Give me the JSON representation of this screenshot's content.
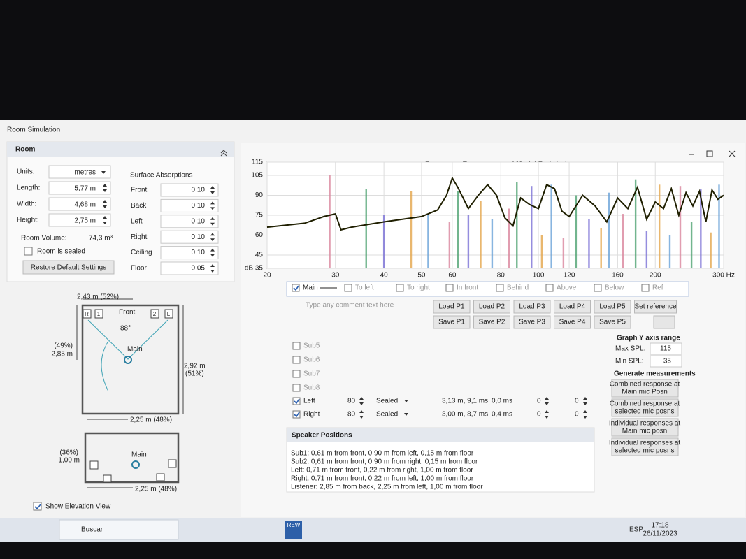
{
  "window": {
    "title": "Room Simulation"
  },
  "room": {
    "title": "Room",
    "units_label": "Units:",
    "units": "metres",
    "length_label": "Length:",
    "length": "5,77 m",
    "width_label": "Width:",
    "width": "4,68 m",
    "height_label": "Height:",
    "height": "2,75 m",
    "volume_label": "Room Volume:",
    "volume": "74,3 m³",
    "sealed": "Room is sealed",
    "restore": "Restore Default Settings"
  },
  "surface": {
    "title": "Surface Absorptions",
    "rows": [
      [
        "Front",
        "0,10"
      ],
      [
        "Back",
        "0,10"
      ],
      [
        "Left",
        "0,10"
      ],
      [
        "Right",
        "0,10"
      ],
      [
        "Ceiling",
        "0,10"
      ],
      [
        "Floor",
        "0,05"
      ]
    ]
  },
  "plan": {
    "width_top": "2,43 m (52%)",
    "front": "Front",
    "r": "R",
    "one": "1",
    "two": "2",
    "l": "L",
    "angle": "88°",
    "main": "Main",
    "left_pct": "(49%)",
    "left_dist": "2,85 m",
    "right_dist": "2,92 m",
    "right_pct": "(51%)",
    "bottom": "2,25 m (48%)"
  },
  "elevation": {
    "main": "Main",
    "pct": "(36%)",
    "height": "1,00 m",
    "bottom": "2,25 m (48%)",
    "show": "Show Elevation View"
  },
  "chart_data": {
    "type": "line",
    "title": "Frequency Responses and Modal Distribution",
    "x": [
      20,
      25,
      28,
      30,
      31,
      33,
      40,
      50,
      55,
      58,
      60,
      62,
      66,
      70,
      74,
      78,
      82,
      86,
      90,
      95,
      100,
      105,
      110,
      115,
      120,
      130,
      140,
      150,
      160,
      170,
      180,
      190,
      200,
      210,
      220,
      230,
      240,
      250,
      260,
      270,
      280,
      290,
      300
    ],
    "values": [
      66,
      69,
      74,
      76,
      64,
      66,
      70,
      74,
      79,
      90,
      103,
      96,
      80,
      90,
      98,
      90,
      73,
      67,
      88,
      83,
      80,
      98,
      95,
      78,
      74,
      90,
      82,
      70,
      88,
      80,
      96,
      72,
      85,
      80,
      95,
      75,
      92,
      82,
      93,
      70,
      94,
      87,
      90
    ],
    "color": "#1f1f00",
    "modes": {
      "x": [
        29,
        36,
        40,
        47,
        52,
        59,
        62,
        66,
        71,
        76,
        84,
        88,
        96,
        102,
        108,
        116,
        125,
        135,
        145,
        152,
        165,
        178,
        190,
        205,
        218,
        232,
        248,
        262,
        278,
        292
      ],
      "values": [
        105,
        95,
        75,
        93,
        75,
        70,
        93,
        75,
        86,
        72,
        80,
        100,
        97,
        60,
        98,
        58,
        90,
        72,
        65,
        92,
        76,
        102,
        63,
        98,
        60,
        97,
        70,
        95,
        62,
        98
      ],
      "colors": [
        "#d9849c",
        "#4fa372",
        "#7b70d6",
        "#e3a54a",
        "#6aa2d8"
      ]
    },
    "xlim": [
      20,
      300
    ],
    "ylim": [
      35,
      115
    ],
    "log_x": true,
    "grid": true,
    "xticks": [
      20,
      30,
      40,
      50,
      60,
      80,
      100,
      120,
      160,
      200,
      {
        "value": 300,
        "label": "300 Hz"
      }
    ],
    "yticks": [
      {
        "value": 35,
        "label": "dB 35"
      },
      45,
      60,
      75,
      90,
      105,
      115
    ]
  },
  "traces": [
    {
      "label": "Main",
      "checked": true
    },
    {
      "label": "To left",
      "checked": false
    },
    {
      "label": "To right",
      "checked": false
    },
    {
      "label": "In front",
      "checked": false
    },
    {
      "label": "Behind",
      "checked": false
    },
    {
      "label": "Above",
      "checked": false
    },
    {
      "label": "Below",
      "checked": false
    },
    {
      "label": "Ref",
      "checked": false
    }
  ],
  "comment_placeholder": "Type any comment text here",
  "load_buttons": [
    "Load P1",
    "Load P2",
    "Load P3",
    "Load P4",
    "Load P5",
    "Set reference"
  ],
  "save_buttons": [
    "Save P1",
    "Save P2",
    "Save P3",
    "Save P4",
    "Save P5"
  ],
  "subs": [
    "Sub5",
    "Sub6",
    "Sub7",
    "Sub8"
  ],
  "speakers": [
    {
      "name": "Left",
      "freq": "80",
      "type": "Sealed",
      "distance": "3,13 m, 9,1 ms",
      "delay": "0,0 ms",
      "a": "0",
      "b": "0"
    },
    {
      "name": "Right",
      "freq": "80",
      "type": "Sealed",
      "distance": "3,00 m, 8,7 ms",
      "delay": "0,4 ms",
      "a": "0",
      "b": "0"
    }
  ],
  "positions": {
    "title": "Speaker Positions",
    "lines": [
      "Sub1: 0,61 m from front, 0,90 m from left, 0,15 m from floor",
      "Sub2: 0,61 m from front, 0,90 m from right, 0,15 m from floor",
      "Left: 0,71 m from front, 0,22 m from right, 1,00 m from floor",
      "Right: 0,71 m from front, 0,22 m from left, 1,00 m from floor",
      "Listener: 2,85 m from back, 2,25 m from left, 1,00 m from floor"
    ]
  },
  "y_range": {
    "title": "Graph Y axis range",
    "max_label": "Max SPL:",
    "max": "115",
    "min_label": "Min SPL:",
    "min": "35"
  },
  "generate": {
    "title": "Generate measurements",
    "buttons": [
      [
        "Combined response at",
        "Main mic Posn"
      ],
      [
        "Combined response at",
        "selected mic posns"
      ],
      [
        "Individual responses at",
        "Main mic posn"
      ],
      [
        "Individual responses at",
        "selected mic posns"
      ]
    ]
  },
  "taskbar": {
    "search": "Buscar",
    "app": "REW",
    "lang": "ESP",
    "time": "17:18",
    "date": "26/11/2023"
  }
}
